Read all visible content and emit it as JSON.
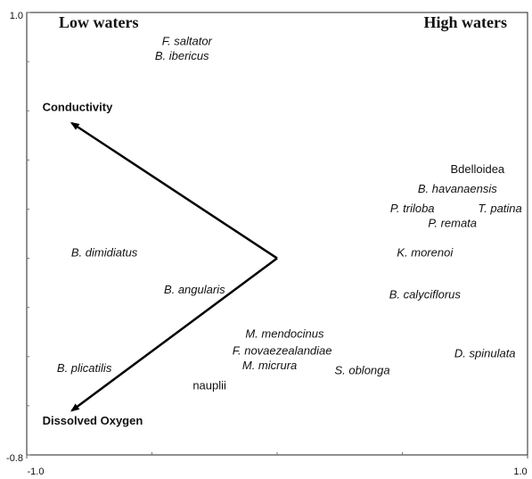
{
  "chart_data": {
    "type": "biplot",
    "annotations": [
      "Low waters",
      "High waters"
    ],
    "xlim": [
      -1,
      1
    ],
    "ylim": [
      -0.8,
      1
    ],
    "xticks": [
      {
        "value": -1,
        "label": "-1.0"
      },
      {
        "value": 1,
        "label": "1.0"
      }
    ],
    "yticks": [
      -0.8,
      {
        "value": 1,
        "label": "1.0"
      }
    ],
    "xminor": [
      -0.5,
      0,
      0.5
    ],
    "yminor": [
      0.8,
      0.6,
      0.4,
      0.2,
      0,
      -0.2,
      -0.4,
      -0.6
    ],
    "vector_color": "#000000",
    "vectors": [
      {
        "name": "Conductivity",
        "x": -0.82,
        "y": 0.55
      },
      {
        "name": "Dissolved Oxygen",
        "x": -0.82,
        "y": -0.62
      }
    ],
    "points": [
      {
        "name": "F. saltator",
        "x": -0.36,
        "y": 0.88,
        "italic": true
      },
      {
        "name": "B. ibericus",
        "x": -0.38,
        "y": 0.82,
        "italic": true
      },
      {
        "name": "Bdelloidea",
        "x": 0.8,
        "y": 0.36,
        "italic": false
      },
      {
        "name": "B. havanaensis",
        "x": 0.72,
        "y": 0.28,
        "italic": true
      },
      {
        "name": "P. triloba",
        "x": 0.54,
        "y": 0.2,
        "italic": true
      },
      {
        "name": "T. patina",
        "x": 0.89,
        "y": 0.2,
        "italic": true
      },
      {
        "name": "P. remata",
        "x": 0.7,
        "y": 0.14,
        "italic": true
      },
      {
        "name": "K. morenoi",
        "x": 0.59,
        "y": 0.02,
        "italic": true
      },
      {
        "name": "B. dimidiatus",
        "x": -0.69,
        "y": 0.02,
        "italic": true
      },
      {
        "name": "B. angularis",
        "x": -0.33,
        "y": -0.13,
        "italic": true
      },
      {
        "name": "B. calyciflorus",
        "x": 0.59,
        "y": -0.15,
        "italic": true
      },
      {
        "name": "M. mendocinus",
        "x": 0.03,
        "y": -0.31,
        "italic": true
      },
      {
        "name": "F. novaezealandiae",
        "x": 0.02,
        "y": -0.38,
        "italic": true
      },
      {
        "name": "D. spinulata",
        "x": 0.83,
        "y": -0.39,
        "italic": true
      },
      {
        "name": "B. plicatilis",
        "x": -0.77,
        "y": -0.45,
        "italic": true
      },
      {
        "name": "M. micrura",
        "x": -0.03,
        "y": -0.44,
        "italic": true
      },
      {
        "name": "S. oblonga",
        "x": 0.34,
        "y": -0.46,
        "italic": true
      },
      {
        "name": "nauplii",
        "x": -0.27,
        "y": -0.52,
        "italic": false
      }
    ]
  }
}
